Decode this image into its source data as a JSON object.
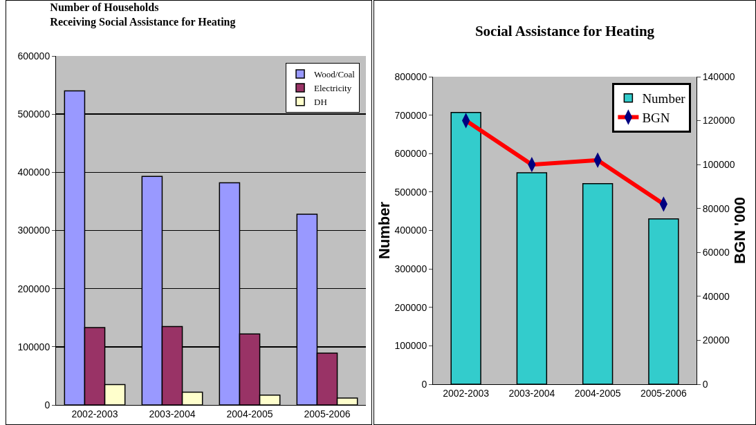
{
  "chart_data": [
    {
      "type": "bar",
      "title": "Number of Households Receiving Social Assistance for Heating",
      "categories": [
        "2002-2003",
        "2003-2004",
        "2004-2005",
        "2005-2006"
      ],
      "series": [
        {
          "name": "Wood/Coal",
          "color": "#9999ff",
          "values": [
            540000,
            393000,
            382000,
            328000
          ]
        },
        {
          "name": "Electricity",
          "color": "#993366",
          "values": [
            133000,
            135000,
            122000,
            89000
          ]
        },
        {
          "name": "DH",
          "color": "#ffffcc",
          "values": [
            35000,
            22000,
            17000,
            12000
          ]
        }
      ],
      "ylim": [
        0,
        600000
      ],
      "yticks": [
        0,
        100000,
        200000,
        300000,
        400000,
        500000,
        600000
      ],
      "grid": "y",
      "legend": "top right"
    },
    {
      "type": "bar",
      "title": "Social Assistance for Heating",
      "ylabel": "Number",
      "y2label": "BGN '000",
      "categories": [
        "2002-2003",
        "2003-2004",
        "2004-2005",
        "2005-2006"
      ],
      "series": [
        {
          "name": "Number",
          "color": "#33cccc",
          "values": [
            707000,
            550000,
            522000,
            430000
          ]
        },
        {
          "name": "BGN",
          "type": "line",
          "axis": "y2",
          "color": "#ff0000",
          "colors": [
            "#000080",
            "#000080",
            "#000080",
            "#000080"
          ],
          "marker": "diamond",
          "values": [
            120000,
            100000,
            102000,
            82000
          ]
        }
      ],
      "ylim": [
        0,
        800000
      ],
      "yticks": [
        0,
        100000,
        200000,
        300000,
        400000,
        500000,
        600000,
        700000,
        800000
      ],
      "y2lim": [
        0,
        140000
      ],
      "y2ticks": [
        0,
        20000,
        40000,
        60000,
        80000,
        100000,
        120000,
        140000
      ],
      "grid": false,
      "legend": "top right"
    }
  ]
}
